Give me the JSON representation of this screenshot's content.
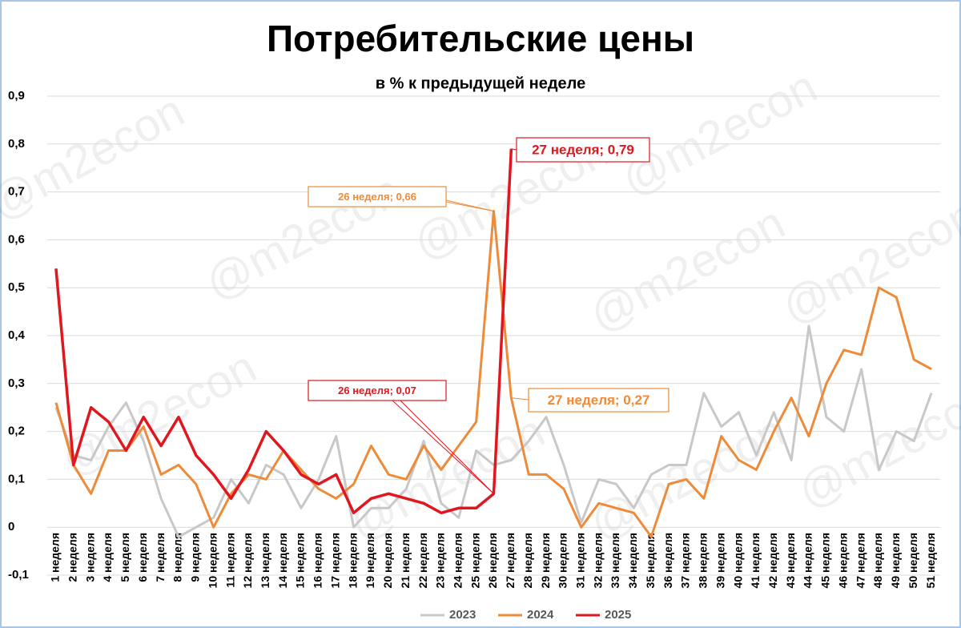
{
  "chart_data": {
    "type": "line",
    "title": "Потребительские цены",
    "subtitle": "в % к предыдущей неделе",
    "watermark": "@m2econ",
    "categories": [
      "1 неделя",
      "2 неделя",
      "3 неделя",
      "4 неделя",
      "5 неделя",
      "6 неделя",
      "7 неделя",
      "8 неделя",
      "9 неделя",
      "10 неделя",
      "11 неделя",
      "12 неделя",
      "13 неделя",
      "14 неделя",
      "15 неделя",
      "16 неделя",
      "17 неделя",
      "18 неделя",
      "19 неделя",
      "20 неделя",
      "21 неделя",
      "22 неделя",
      "23 неделя",
      "24 неделя",
      "25 неделя",
      "26 неделя",
      "27 неделя",
      "28 неделя",
      "29 неделя",
      "30 неделя",
      "31 неделя",
      "32 неделя",
      "33 неделя",
      "34 неделя",
      "35 неделя",
      "36 неделя",
      "37 неделя",
      "38 неделя",
      "39 неделя",
      "40 неделя",
      "41 неделя",
      "42 неделя",
      "43 неделя",
      "44 неделя",
      "45 неделя",
      "46 неделя",
      "47 неделя",
      "48 неделя",
      "49 неделя",
      "50 неделя",
      "51 неделя"
    ],
    "series": [
      {
        "name": "2023",
        "color": "#c8c8c8",
        "values": [
          0.25,
          0.15,
          0.14,
          0.21,
          0.26,
          0.18,
          0.06,
          -0.02,
          0,
          0.02,
          0.1,
          0.05,
          0.13,
          0.11,
          0.04,
          0.1,
          0.19,
          0,
          0.04,
          0.04,
          0.08,
          0.18,
          0.05,
          0.02,
          0.16,
          0.13,
          0.14,
          0.18,
          0.23,
          0.13,
          0.01,
          0.1,
          0.09,
          0.04,
          0.11,
          0.13,
          0.13,
          0.28,
          0.21,
          0.24,
          0.15,
          0.24,
          0.14,
          0.42,
          0.23,
          0.2,
          0.33,
          0.12,
          0.2,
          0.18,
          0.28
        ]
      },
      {
        "name": "2024",
        "color": "#ed8b3a",
        "values": [
          0.26,
          0.13,
          0.07,
          0.16,
          0.16,
          0.21,
          0.11,
          0.13,
          0.09,
          0,
          0.07,
          0.11,
          0.1,
          0.16,
          0.12,
          0.08,
          0.06,
          0.09,
          0.17,
          0.11,
          0.1,
          0.17,
          0.12,
          0.17,
          0.22,
          0.66,
          0.27,
          0.11,
          0.11,
          0.08,
          0,
          0.05,
          0.04,
          0.03,
          -0.02,
          0.09,
          0.1,
          0.06,
          0.19,
          0.14,
          0.12,
          0.2,
          0.27,
          0.19,
          0.3,
          0.37,
          0.36,
          0.5,
          0.48,
          0.35,
          0.33
        ]
      },
      {
        "name": "2025",
        "color": "#e0171f",
        "values": [
          0.54,
          0.13,
          0.25,
          0.22,
          0.16,
          0.23,
          0.17,
          0.23,
          0.15,
          0.11,
          0.06,
          0.12,
          0.2,
          0.16,
          0.11,
          0.09,
          0.11,
          0.03,
          0.06,
          0.07,
          0.06,
          0.05,
          0.03,
          0.04,
          0.04,
          0.07,
          0.79,
          null,
          null,
          null,
          null,
          null,
          null,
          null,
          null,
          null,
          null,
          null,
          null,
          null,
          null,
          null,
          null,
          null,
          null,
          null,
          null,
          null,
          null,
          null,
          null
        ]
      }
    ],
    "ylim": [
      -0.1,
      0.9
    ],
    "yticks": [
      {
        "value": -0.1,
        "label": "-0,1"
      },
      0,
      {
        "value": 0.1,
        "label": "0,1"
      },
      {
        "value": 0.2,
        "label": "0,2"
      },
      {
        "value": 0.3,
        "label": "0,3"
      },
      {
        "value": 0.4,
        "label": "0,4"
      },
      {
        "value": 0.5,
        "label": "0,5"
      },
      {
        "value": 0.6,
        "label": "0,6"
      },
      {
        "value": 0.7,
        "label": "0,7"
      },
      {
        "value": 0.8,
        "label": "0,8"
      },
      {
        "value": 0.9,
        "label": "0,9"
      }
    ],
    "grid": true,
    "legend": "bottom",
    "annotations": [
      {
        "text": "27 неделя; 0,79"
      },
      {
        "text": "27 неделя; 0,27"
      },
      {
        "text": "26 неделя; 0,66"
      },
      {
        "text": "26 неделя; 0,07"
      }
    ]
  }
}
